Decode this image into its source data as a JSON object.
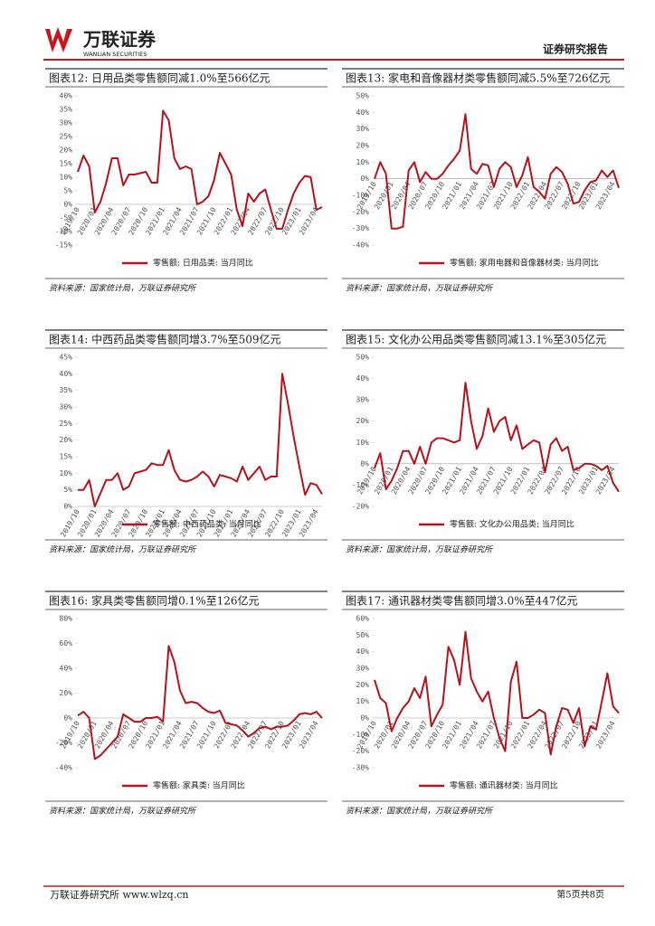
{
  "header": {
    "brand": "万联证券",
    "brand_en": "WANLIAN SECURITIES",
    "doc_type": "证券研究报告"
  },
  "footer": {
    "left": "万联证券研究所 www.wlzq.cn",
    "right": "第5页共8页"
  },
  "chart_data": [
    {
      "type": "line",
      "title": "图表12: 日用品类零售额同减1.0%至566亿元",
      "source": "资料来源：国家统计局，万联证券研究所",
      "grid": false,
      "categories": [
        "2019/10",
        null,
        null,
        "2020/01",
        null,
        null,
        "2020/04",
        null,
        null,
        "2020/07",
        null,
        null,
        "2020/10",
        null,
        null,
        "2021/01",
        null,
        null,
        "2021/04",
        null,
        null,
        "2021/07",
        null,
        null,
        "2021/10",
        null,
        null,
        "2022/01",
        null,
        null,
        "2022/04",
        null,
        null,
        "2022/07",
        null,
        null,
        "2022/10",
        null,
        null,
        "2023/01",
        null,
        null,
        "2023/04",
        null
      ],
      "series": [
        {
          "name": "零售额: 日用品类: 当月同比",
          "color": "#b5121b",
          "values": [
            12,
            18,
            14,
            -3,
            1,
            8,
            17,
            17,
            7,
            11,
            11,
            11.5,
            12,
            8,
            8,
            34.5,
            31,
            17,
            13,
            14,
            13,
            0,
            1,
            3,
            9,
            19,
            15,
            11,
            -2,
            -8,
            4,
            1,
            4,
            5.5,
            -2,
            -9,
            -9,
            -2,
            4,
            8,
            10.5,
            10,
            -2,
            -1
          ]
        }
      ],
      "ylim": [
        -15,
        40
      ],
      "yticks": [
        {
          "value": -15,
          "label": "-15%"
        },
        {
          "value": -10,
          "label": "-10%"
        },
        {
          "value": -5,
          "label": "-5%"
        },
        {
          "value": 0,
          "label": "0%"
        },
        {
          "value": 5,
          "label": "5%"
        },
        {
          "value": 10,
          "label": "10%"
        },
        {
          "value": 15,
          "label": "15%"
        },
        {
          "value": 20,
          "label": "20%"
        },
        {
          "value": 25,
          "label": "25%"
        },
        {
          "value": 30,
          "label": "30%"
        },
        {
          "value": 35,
          "label": "35%"
        },
        {
          "value": 40,
          "label": "40%"
        }
      ]
    },
    {
      "type": "line",
      "title": "图表13: 家电和音像器材类零售额同减5.5%至726亿元",
      "source": "资料来源：国家统计局，万联证券研究所",
      "grid": false,
      "categories": [
        "2019/10",
        null,
        null,
        "2020/01",
        null,
        null,
        "2020/04",
        null,
        null,
        "2020/07",
        null,
        null,
        "2020/10",
        null,
        null,
        "2021/01",
        null,
        null,
        "2021/04",
        null,
        null,
        "2021/07",
        null,
        null,
        "2021/10",
        null,
        null,
        "2022/01",
        null,
        null,
        "2022/04",
        null,
        null,
        "2022/07",
        null,
        null,
        "2022/10",
        null,
        null,
        "2023/01",
        null,
        null,
        "2023/04",
        null
      ],
      "series": [
        {
          "name": "零售额: 家用电器和音像器材类: 当月同比",
          "color": "#b5121b",
          "values": [
            0,
            10,
            3,
            -30,
            -30,
            -29,
            5,
            10,
            -2,
            4,
            0,
            0,
            3,
            8,
            12,
            17,
            39,
            6,
            3,
            9,
            8,
            -5,
            6,
            10,
            7,
            -5,
            2,
            13,
            -5,
            -8,
            -12,
            3,
            7,
            4,
            -3,
            -15,
            -14,
            -7,
            -2,
            -1,
            5,
            1,
            5,
            -5.5
          ]
        }
      ],
      "ylim": [
        -40,
        50
      ],
      "yticks": [
        {
          "value": -40,
          "label": "-40%"
        },
        {
          "value": -30,
          "label": "-30%"
        },
        {
          "value": -20,
          "label": "-20%"
        },
        {
          "value": -10,
          "label": "-10%"
        },
        {
          "value": 0,
          "label": "0%"
        },
        {
          "value": 10,
          "label": "10%"
        },
        {
          "value": 20,
          "label": "20%"
        },
        {
          "value": 30,
          "label": "30%"
        },
        {
          "value": 40,
          "label": "40%"
        },
        {
          "value": 50,
          "label": "50%"
        }
      ]
    },
    {
      "type": "line",
      "title": "图表14: 中西药品类零售额同增3.7%至509亿元",
      "source": "资料来源：国家统计局，万联证券研究所",
      "grid": false,
      "categories": [
        "2019/10",
        null,
        null,
        "2020/01",
        null,
        null,
        "2020/04",
        null,
        null,
        "2020/07",
        null,
        null,
        "2020/10",
        null,
        null,
        "2021/01",
        null,
        null,
        "2021/04",
        null,
        null,
        "2021/07",
        null,
        null,
        "2021/10",
        null,
        null,
        "2022/01",
        null,
        null,
        "2022/04",
        null,
        null,
        "2022/07",
        null,
        null,
        "2022/10",
        null,
        null,
        "2023/01",
        null,
        null,
        "2023/04",
        null
      ],
      "series": [
        {
          "name": "零售额: 中西药品类: 当月同比",
          "color": "#b5121b",
          "values": [
            5,
            5,
            8,
            0,
            4,
            8,
            8,
            10,
            5,
            6,
            10,
            10.5,
            11,
            13,
            12.5,
            12.5,
            17,
            11,
            8,
            7.5,
            8,
            9,
            10.5,
            9,
            6,
            9.5,
            9,
            8.5,
            7.5,
            12,
            8,
            10,
            12,
            8,
            9,
            9,
            40,
            31,
            21,
            12,
            3.5,
            7,
            6.5,
            3.7
          ]
        }
      ],
      "ylim": [
        0,
        45
      ],
      "yticks": [
        {
          "value": 0,
          "label": "0%"
        },
        {
          "value": 5,
          "label": "5%"
        },
        {
          "value": 10,
          "label": "10%"
        },
        {
          "value": 15,
          "label": "15%"
        },
        {
          "value": 20,
          "label": "20%"
        },
        {
          "value": 25,
          "label": "25%"
        },
        {
          "value": 30,
          "label": "30%"
        },
        {
          "value": 35,
          "label": "35%"
        },
        {
          "value": 40,
          "label": "40%"
        },
        {
          "value": 45,
          "label": "45%"
        }
      ]
    },
    {
      "type": "line",
      "title": "图表15: 文化办公用品类零售额同减13.1%至305亿元",
      "source": "资料来源：国家统计局，万联证券研究所",
      "grid": false,
      "categories": [
        "2019/10",
        null,
        null,
        "2020/01",
        null,
        null,
        "2020/04",
        null,
        null,
        "2020/07",
        null,
        null,
        "2020/10",
        null,
        null,
        "2021/01",
        null,
        null,
        "2021/04",
        null,
        null,
        "2021/07",
        null,
        null,
        "2021/10",
        null,
        null,
        "2022/01",
        null,
        null,
        "2022/04",
        null,
        null,
        "2022/07",
        null,
        null,
        "2022/10",
        null,
        null,
        "2023/01",
        null,
        null,
        "2023/04",
        null
      ],
      "series": [
        {
          "name": "零售额: 文化办公用品类: 当月同比",
          "color": "#b5121b",
          "values": [
            -2,
            5,
            -12,
            -8,
            -2,
            6,
            6,
            0,
            8,
            0,
            10,
            12,
            12,
            11,
            10,
            11,
            38,
            20,
            7,
            13,
            26,
            15,
            20,
            22,
            11,
            18,
            7,
            9,
            11,
            10,
            -4,
            9,
            12,
            6,
            8,
            -3,
            -2,
            0,
            0,
            -1,
            -3,
            -1,
            -9,
            -13.1
          ]
        }
      ],
      "ylim": [
        -20,
        50
      ],
      "yticks": [
        {
          "value": -20,
          "label": "-20%"
        },
        {
          "value": -10,
          "label": "-10%"
        },
        {
          "value": 0,
          "label": "0%"
        },
        {
          "value": 10,
          "label": "10%"
        },
        {
          "value": 20,
          "label": "20%"
        },
        {
          "value": 30,
          "label": "30%"
        },
        {
          "value": 40,
          "label": "40%"
        },
        {
          "value": 50,
          "label": "50%"
        }
      ]
    },
    {
      "type": "line",
      "title": "图表16: 家具类零售额同增0.1%至126亿元",
      "source": "资料来源：国家统计局，万联证券研究所",
      "grid": false,
      "categories": [
        "2019/10",
        null,
        null,
        "2020/01",
        null,
        null,
        "2020/04",
        null,
        null,
        "2020/07",
        null,
        null,
        "2020/10",
        null,
        null,
        "2021/01",
        null,
        null,
        "2021/04",
        null,
        null,
        "2021/07",
        null,
        null,
        "2021/10",
        null,
        null,
        "2022/01",
        null,
        null,
        "2022/04",
        null,
        null,
        "2022/07",
        null,
        null,
        "2022/10",
        null,
        null,
        "2023/01",
        null,
        null,
        "2023/04",
        null
      ],
      "series": [
        {
          "name": "零售额: 家具类: 当月同比",
          "color": "#b5121b",
          "values": [
            2,
            5,
            0,
            -33,
            -30,
            -25,
            -20,
            -15,
            3,
            0,
            -3,
            -3,
            0,
            0,
            1,
            -3,
            58,
            45,
            22,
            12,
            13,
            12,
            8,
            5,
            4,
            6,
            -4,
            -5,
            -6,
            -10,
            -15,
            -12,
            -8,
            -7,
            -9,
            -7,
            -7,
            -6,
            -2,
            3,
            4,
            3,
            5,
            0.1
          ]
        }
      ],
      "ylim": [
        -40,
        80
      ],
      "yticks": [
        {
          "value": -40,
          "label": "-40%"
        },
        {
          "value": -20,
          "label": "-20%"
        },
        {
          "value": 0,
          "label": "0%"
        },
        {
          "value": 20,
          "label": "20%"
        },
        {
          "value": 40,
          "label": "40%"
        },
        {
          "value": 60,
          "label": "60%"
        },
        {
          "value": 80,
          "label": "80%"
        }
      ]
    },
    {
      "type": "line",
      "title": "图表17: 通讯器材类零售额同增3.0%至447亿元",
      "source": "资料来源：国家统计局，万联证券研究所",
      "grid": false,
      "categories": [
        "2019/10",
        null,
        null,
        "2020/01",
        null,
        null,
        "2020/04",
        null,
        null,
        "2020/07",
        null,
        null,
        "2020/10",
        null,
        null,
        "2021/01",
        null,
        null,
        "2021/04",
        null,
        null,
        "2021/07",
        null,
        null,
        "2021/10",
        null,
        null,
        "2022/01",
        null,
        null,
        "2022/04",
        null,
        null,
        "2022/07",
        null,
        null,
        "2022/10",
        null,
        null,
        "2023/01",
        null,
        null,
        "2023/04",
        null
      ],
      "series": [
        {
          "name": "零售额: 通讯器材类: 当月同比",
          "color": "#b5121b",
          "values": [
            23,
            12,
            9,
            -8,
            0,
            6,
            10,
            18,
            12,
            25,
            -5,
            2,
            8,
            43,
            35,
            20,
            52,
            24,
            16,
            10,
            16,
            0,
            -12,
            -20,
            22,
            34,
            0,
            0,
            2,
            5,
            3,
            -22,
            -5,
            6,
            5,
            -3,
            6,
            -17,
            -5,
            -7,
            10,
            27,
            7,
            3
          ]
        }
      ],
      "ylim": [
        -30,
        60
      ],
      "yticks": [
        {
          "value": -30,
          "label": "-30%"
        },
        {
          "value": -20,
          "label": "-20%"
        },
        {
          "value": -10,
          "label": "-10%"
        },
        {
          "value": 0,
          "label": "0%"
        },
        {
          "value": 10,
          "label": "10%"
        },
        {
          "value": 20,
          "label": "20%"
        },
        {
          "value": 30,
          "label": "30%"
        },
        {
          "value": 40,
          "label": "40%"
        },
        {
          "value": 50,
          "label": "50%"
        },
        {
          "value": 60,
          "label": "60%"
        }
      ]
    }
  ]
}
